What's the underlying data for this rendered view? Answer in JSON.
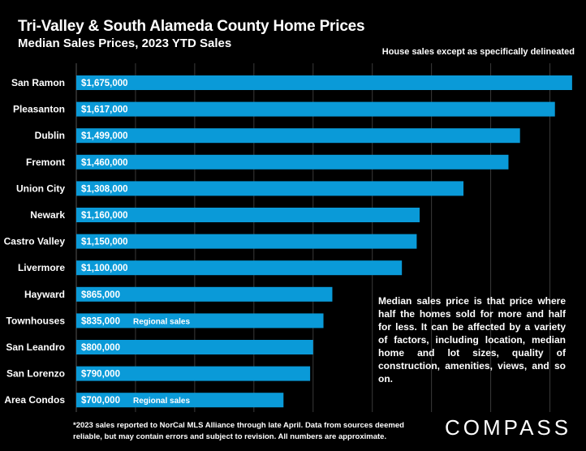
{
  "header": {
    "title": "Tri-Valley & South Alameda County Home Prices",
    "subtitle": "Median Sales Prices, 2023 YTD Sales",
    "note": "House sales except as specifically delineated"
  },
  "callout": "Median sales price is that price where half the homes sold for more and half for less. It can be affected by a variety of factors, including location, median home and lot sizes, quality of construction, amenities, views, and so on.",
  "footnote": "*2023 sales reported to NorCal MLS Alliance through late April. Data from sources deemed reliable, but may contain errors and subject to revision. All numbers are approximate.",
  "logo": "COMPASS",
  "chart_data": {
    "type": "bar",
    "orientation": "horizontal",
    "title": "Tri-Valley & South Alameda County Home Prices",
    "subtitle": "Median Sales Prices, 2023 YTD Sales",
    "xlim": [
      0,
      1700000
    ],
    "grid": true,
    "bar_color": "#0a9ad8",
    "categories": [
      "San Ramon",
      "Pleasanton",
      "Dublin",
      "Fremont",
      "Union City",
      "Newark",
      "Castro Valley",
      "Livermore",
      "Hayward",
      "Townhouses",
      "San Leandro",
      "San Lorenzo",
      "Area Condos"
    ],
    "values": [
      1675000,
      1617000,
      1499000,
      1460000,
      1308000,
      1160000,
      1150000,
      1100000,
      865000,
      835000,
      800000,
      790000,
      700000
    ],
    "value_labels": [
      "$1,675,000",
      "$1,617,000",
      "$1,499,000",
      "$1,460,000",
      "$1,308,000",
      "$1,160,000",
      "$1,150,000",
      "$1,100,000",
      "$865,000",
      "$835,000",
      "$800,000",
      "$790,000",
      "$700,000"
    ],
    "annotations": [
      "",
      "",
      "",
      "",
      "",
      "",
      "",
      "",
      "",
      "Regional sales",
      "",
      "",
      "Regional sales"
    ]
  }
}
